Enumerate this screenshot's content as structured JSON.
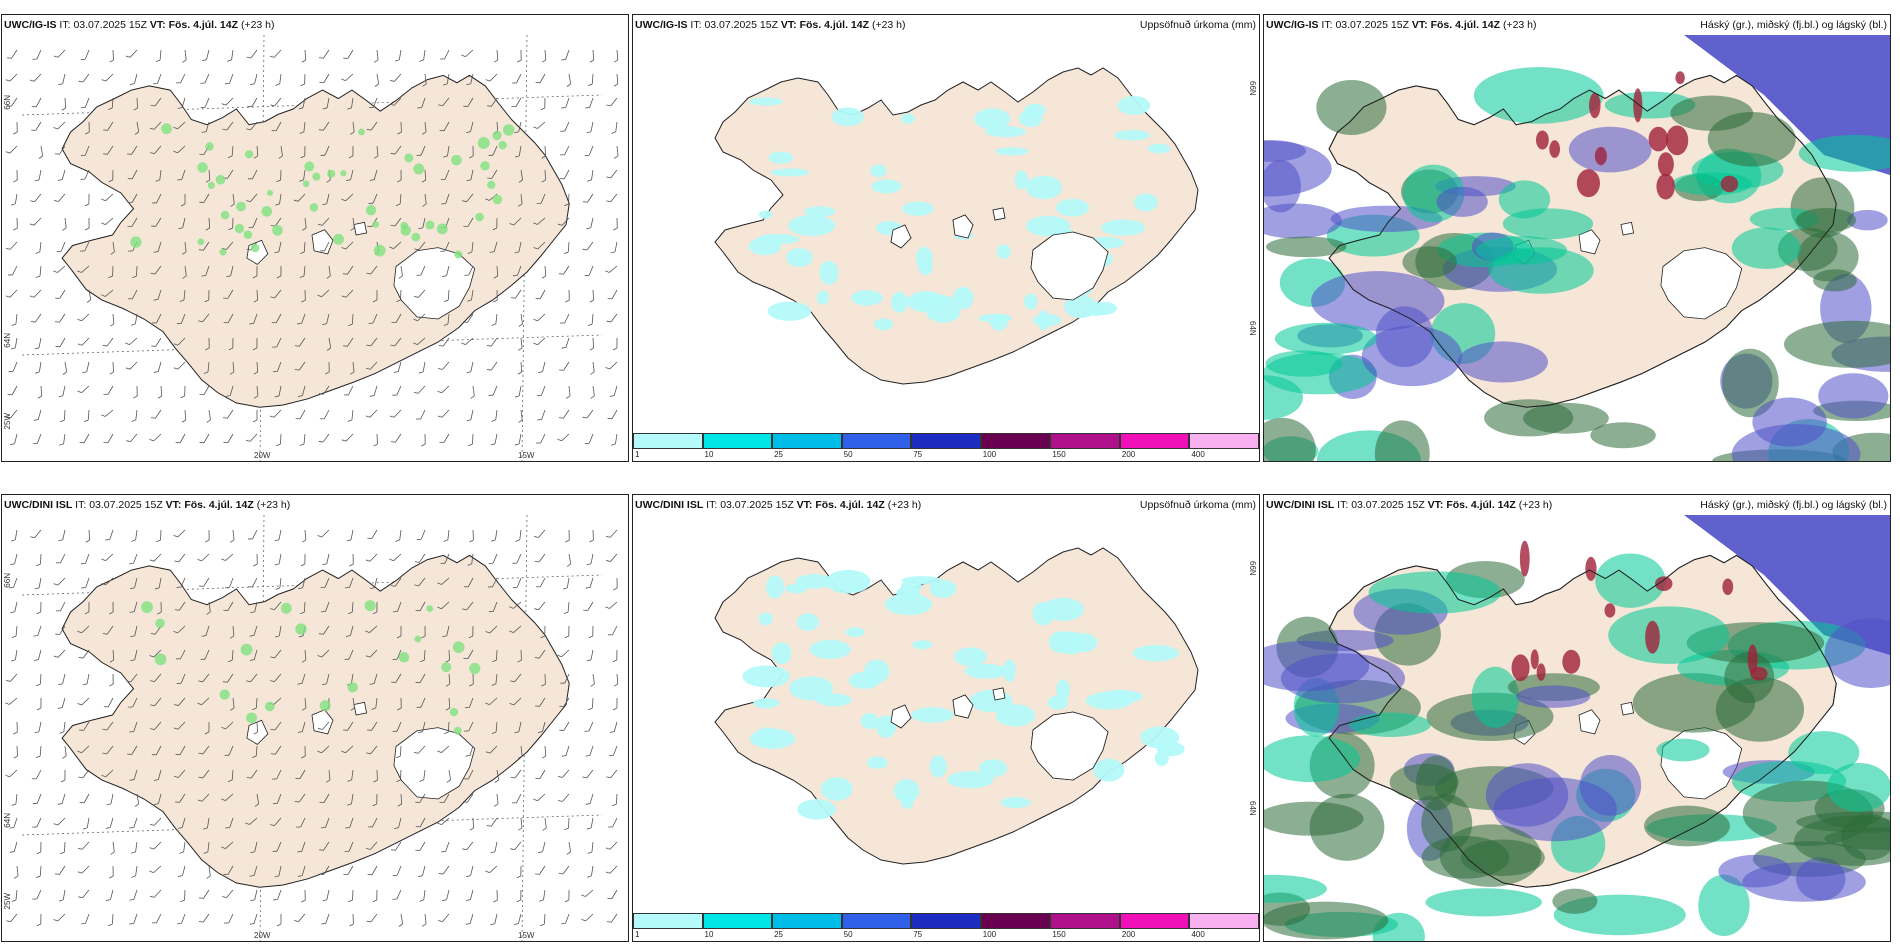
{
  "rows": [
    {
      "model": "UWC/IG-IS",
      "it_label": "IT:",
      "it_value": "03.07.2025 15Z",
      "vt_label": "VT:",
      "vt_value": "Fös. 4.júl. 14Z",
      "lead": "(+23 h)"
    },
    {
      "model": "UWC/DINI ISL",
      "it_label": "IT:",
      "it_value": "03.07.2025 15Z",
      "vt_label": "VT:",
      "vt_value": "Fös. 4.júl. 14Z",
      "lead": "(+23 h)"
    }
  ],
  "precip_title": "Uppsöfnuð úrkoma (mm)",
  "cloud_title": "Háský (gr.), miðský (fj.bl.) og lágský (bl.)",
  "colorbar": {
    "ticks": [
      "1",
      "10",
      "25",
      "50",
      "75",
      "100",
      "150",
      "200",
      "400"
    ],
    "colors": [
      "#b4fafa",
      "#00e6e6",
      "#00bde8",
      "#3060e8",
      "#1c2cc0",
      "#6a0050",
      "#b0108a",
      "#f010b8",
      "#f8b0f0"
    ]
  },
  "axes": {
    "lat_top": "66N",
    "lat_bottom": "64N",
    "lon_left": "20W",
    "lon_right": "15W",
    "corner": "25W"
  },
  "colors": {
    "land": "#f5e6d8",
    "glacier": "#ffffff",
    "precip_light": "#b4fafa",
    "high_cloud": "#2e6b3a",
    "mid_cloud": "#00c896",
    "low_cloud": "#5050c8"
  }
}
